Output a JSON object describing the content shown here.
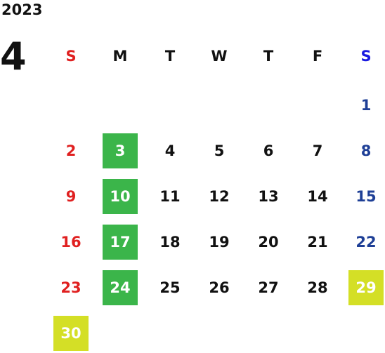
{
  "year": "2023",
  "month": "4",
  "colors": {
    "sunday": "#e02020",
    "saturday_header": "#1a1ae0",
    "saturday": "#1e3f96",
    "weekday": "#111111",
    "holiday_green": "#3bb54a",
    "holiday_yellow": "#d4df26",
    "highlight_text": "#ffffff"
  },
  "weekdays": [
    "S",
    "M",
    "T",
    "W",
    "T",
    "F",
    "S"
  ],
  "weeks": [
    [
      null,
      null,
      null,
      null,
      null,
      null,
      "1"
    ],
    [
      "2",
      "3",
      "4",
      "5",
      "6",
      "7",
      "8"
    ],
    [
      "9",
      "10",
      "11",
      "12",
      "13",
      "14",
      "15"
    ],
    [
      "16",
      "17",
      "18",
      "19",
      "20",
      "21",
      "22"
    ],
    [
      "23",
      "24",
      "25",
      "26",
      "27",
      "28",
      "29"
    ],
    [
      "30",
      null,
      null,
      null,
      null,
      null,
      null
    ]
  ],
  "highlights": {
    "3": "green",
    "10": "green",
    "17": "green",
    "24": "green",
    "29": "yellow",
    "30": "yellow"
  }
}
